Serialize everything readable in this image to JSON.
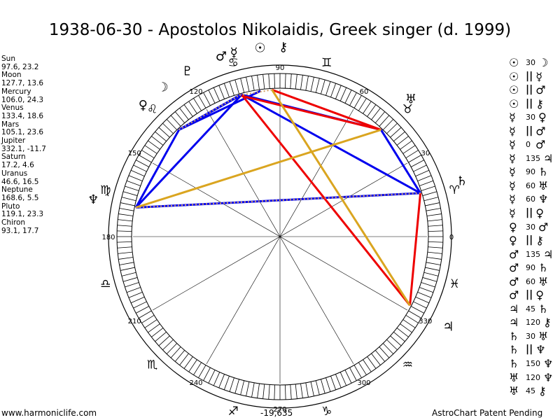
{
  "title": "1938-06-30 - Apostolos Nikolaidis, Greek singer (d. 1999)",
  "planets": [
    {
      "name": "Sun",
      "values": "97.6, 23.2",
      "glyph": "☉",
      "color": "#000000"
    },
    {
      "name": "Moon",
      "values": "127.7, 13.6",
      "glyph": "☽",
      "color": "#000000"
    },
    {
      "name": "Mercury",
      "values": "106.0, 24.3",
      "glyph": "☿",
      "color": "#000000"
    },
    {
      "name": "Venus",
      "values": "133.4, 18.6",
      "glyph": "♀",
      "color": "#000000"
    },
    {
      "name": "Mars",
      "values": "105.1, 23.6",
      "glyph": "♂",
      "color": "#000000"
    },
    {
      "name": "Jupiter",
      "values": "332.1, -11.7",
      "glyph": "♃",
      "color": "#000000"
    },
    {
      "name": "Saturn",
      "values": "17.2, 4.6",
      "glyph": "♄",
      "color": "#000000"
    },
    {
      "name": "Uranus",
      "values": "46.6, 16.5",
      "glyph": "♅",
      "color": "#000000"
    },
    {
      "name": "Neptune",
      "values": "168.6, 5.5",
      "glyph": "♆",
      "color": "#000000"
    },
    {
      "name": "Pluto",
      "values": "119.1, 23.3",
      "glyph": "♇",
      "color": "#000000"
    },
    {
      "name": "Chiron",
      "values": "93.1, 17.7",
      "glyph": "⚷",
      "color": "#000000"
    }
  ],
  "aspects": [
    {
      "p1": "☉",
      "angle": "30",
      "p2": "☽"
    },
    {
      "p1": "☉",
      "angle": "||",
      "p2": "☿"
    },
    {
      "p1": "☉",
      "angle": "||",
      "p2": "♂"
    },
    {
      "p1": "☉",
      "angle": "||",
      "p2": "⚷"
    },
    {
      "p1": "☿",
      "angle": "30",
      "p2": "♀"
    },
    {
      "p1": "☿",
      "angle": "||",
      "p2": "♂"
    },
    {
      "p1": "☿",
      "angle": "0",
      "p2": "♂"
    },
    {
      "p1": "☿",
      "angle": "135",
      "p2": "♃"
    },
    {
      "p1": "☿",
      "angle": "90",
      "p2": "♄"
    },
    {
      "p1": "☿",
      "angle": "60",
      "p2": "♅"
    },
    {
      "p1": "☿",
      "angle": "60",
      "p2": "♆"
    },
    {
      "p1": "☿",
      "angle": "||",
      "p2": "♀"
    },
    {
      "p1": "♀",
      "angle": "30",
      "p2": "♂"
    },
    {
      "p1": "♀",
      "angle": "||",
      "p2": "⚷"
    },
    {
      "p1": "♂",
      "angle": "135",
      "p2": "♃"
    },
    {
      "p1": "♂",
      "angle": "90",
      "p2": "♄"
    },
    {
      "p1": "♂",
      "angle": "60",
      "p2": "♅"
    },
    {
      "p1": "♂",
      "angle": "||",
      "p2": "♀"
    },
    {
      "p1": "♃",
      "angle": "45",
      "p2": "♄"
    },
    {
      "p1": "♃",
      "angle": "120",
      "p2": "⚷"
    },
    {
      "p1": "♄",
      "angle": "30",
      "p2": "♅"
    },
    {
      "p1": "♄",
      "angle": "||",
      "p2": "♆"
    },
    {
      "p1": "♄",
      "angle": "150",
      "p2": "♆"
    },
    {
      "p1": "♅",
      "angle": "120",
      "p2": "♆"
    },
    {
      "p1": "♅",
      "angle": "45",
      "p2": "⚷"
    }
  ],
  "chart_lines": [
    {
      "from": "Mars",
      "to": "Uranus",
      "color": "#0000ee"
    },
    {
      "from": "Mars",
      "to": "Saturn",
      "color": "#0000ee"
    },
    {
      "from": "Mars",
      "to": "Neptune",
      "color": "#0000ee"
    },
    {
      "from": "Mercury",
      "to": "Venus",
      "color": "#0000ee"
    },
    {
      "from": "Venus",
      "to": "Neptune",
      "color": "#0000ee"
    },
    {
      "from": "Uranus",
      "to": "Saturn",
      "color": "#0000ee"
    },
    {
      "from": "Neptune",
      "to": "Saturn",
      "color": "#0000ee"
    },
    {
      "from": "Sun",
      "to": "Venus",
      "color": "#0000ee"
    },
    {
      "from": "Mars",
      "to": "Jupiter",
      "color": "#ee0000"
    },
    {
      "from": "Mercury",
      "to": "Uranus",
      "color": "#ee0000"
    },
    {
      "from": "Chiron",
      "to": "Uranus",
      "color": "#ee0000"
    },
    {
      "from": "Saturn",
      "to": "Jupiter",
      "color": "#ee0000"
    },
    {
      "from": "Chiron",
      "to": "Jupiter",
      "color": "#daa520"
    },
    {
      "from": "Neptune",
      "to": "Uranus",
      "color": "#daa520"
    },
    {
      "from": "Mars",
      "to": "Venus",
      "color": "#0000ee"
    }
  ],
  "dotted_lines": [
    {
      "from": "Mercury",
      "to": "Chiron",
      "color": "#d2a060"
    },
    {
      "from": "Venus",
      "to": "Mercury",
      "color": "#d2a060"
    },
    {
      "from": "Neptune",
      "to": "Saturn",
      "color": "#d2a060"
    }
  ],
  "degree_labels": [
    {
      "deg": 0,
      "text": "0"
    },
    {
      "deg": 30,
      "text": "30"
    },
    {
      "deg": 60,
      "text": "60"
    },
    {
      "deg": 90,
      "text": "90"
    },
    {
      "deg": 120,
      "text": "120"
    },
    {
      "deg": 150,
      "text": "150"
    },
    {
      "deg": 180,
      "text": "180"
    },
    {
      "deg": 210,
      "text": "210"
    },
    {
      "deg": 240,
      "text": "240"
    },
    {
      "deg": 270,
      "text": "270"
    },
    {
      "deg": 300,
      "text": "300"
    },
    {
      "deg": 330,
      "text": "330"
    }
  ],
  "signs": [
    {
      "deg": 15,
      "glyph": "♈"
    },
    {
      "deg": 45,
      "glyph": "♉"
    },
    {
      "deg": 75,
      "glyph": "♊"
    },
    {
      "deg": 105,
      "glyph": "♋"
    },
    {
      "deg": 135,
      "glyph": "♌"
    },
    {
      "deg": 165,
      "glyph": "♍"
    },
    {
      "deg": 195,
      "glyph": "♎"
    },
    {
      "deg": 225,
      "glyph": "♏"
    },
    {
      "deg": 255,
      "glyph": "♐"
    },
    {
      "deg": 285,
      "glyph": "♑"
    },
    {
      "deg": 315,
      "glyph": "♒"
    },
    {
      "deg": 345,
      "glyph": "♓"
    }
  ],
  "footer": {
    "left": "www.harmoniclife.com",
    "middle": "-19,635",
    "right": "AstroChart Patent Pending"
  }
}
